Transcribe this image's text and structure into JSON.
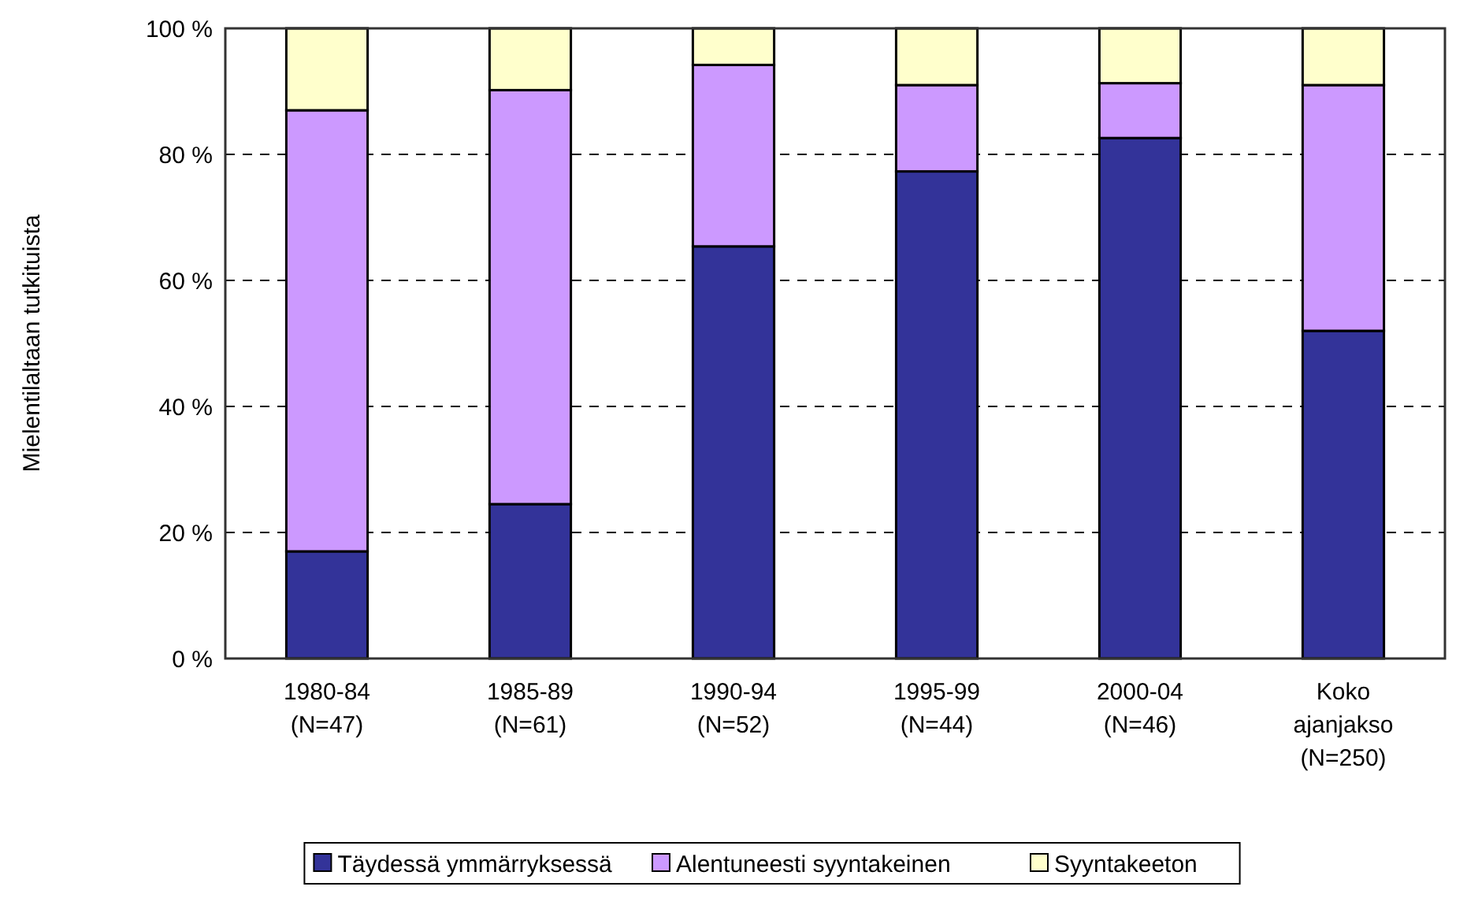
{
  "chart_data": {
    "type": "bar",
    "stacked": true,
    "ylabel": "Mielentilaltaan tutkituista",
    "categories": [
      "1980-84\n(N=47)",
      "1985-89\n(N=61)",
      "1990-94\n(N=52)",
      "1995-99\n(N=44)",
      "2000-04\n(N=46)",
      "Koko\najanjakso\n(N=250)"
    ],
    "series": [
      {
        "name": "Täydessä ymmärryksessä",
        "color": "#333399",
        "values": [
          17,
          24.5,
          65.4,
          77.3,
          82.6,
          52
        ]
      },
      {
        "name": "Alentuneesti syyntakeinen",
        "color": "#cc99ff",
        "values": [
          70,
          65.7,
          28.8,
          13.7,
          8.7,
          39
        ]
      },
      {
        "name": "Syyntakeeton",
        "color": "#ffffcc",
        "values": [
          13,
          9.8,
          5.8,
          9,
          8.7,
          9
        ]
      }
    ],
    "ylim": [
      0,
      100
    ],
    "yticks": [
      {
        "value": 0,
        "label": "0 %"
      },
      {
        "value": 20,
        "label": "20 %"
      },
      {
        "value": 40,
        "label": "40 %"
      },
      {
        "value": 60,
        "label": "60 %"
      },
      {
        "value": 80,
        "label": "80 %"
      },
      {
        "value": 100,
        "label": "100 %"
      }
    ],
    "grid": "y",
    "legend": "bottom"
  }
}
